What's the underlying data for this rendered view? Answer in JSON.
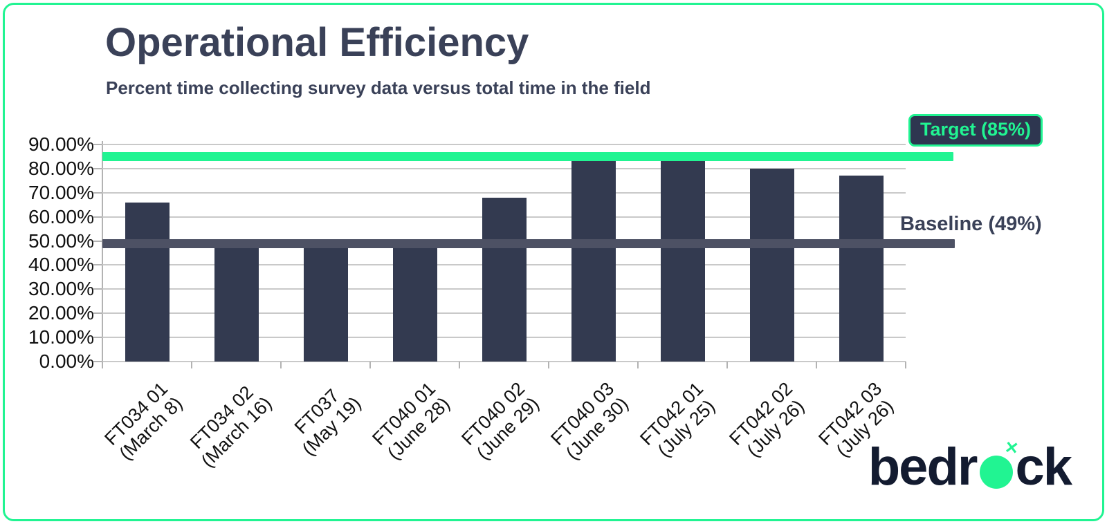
{
  "header": {
    "title": "Operational Efficiency",
    "subtitle": "Percent time collecting survey data versus total time in the field"
  },
  "chart_data": {
    "type": "bar",
    "title": "Operational Efficiency",
    "subtitle": "Percent time collecting survey data versus total time in the field",
    "categories": [
      {
        "id": "FT034 01",
        "date": "(March 8)"
      },
      {
        "id": "FT034 02",
        "date": "(March 16)"
      },
      {
        "id": "FT037",
        "date": "(May 19)"
      },
      {
        "id": "FT040 01",
        "date": "(June 28)"
      },
      {
        "id": "FT040 02",
        "date": "(June 29)"
      },
      {
        "id": "FT040 03",
        "date": "(June 30)"
      },
      {
        "id": "FT042 01",
        "date": "(July 25)"
      },
      {
        "id": "FT042 02",
        "date": "(July 26)"
      },
      {
        "id": "FT042 03",
        "date": "(July 26)"
      }
    ],
    "values": [
      66,
      48,
      48,
      48,
      68,
      83,
      84,
      80,
      77
    ],
    "unit": "percent",
    "ylim": [
      0,
      90
    ],
    "y_tick_labels": [
      "90.00%",
      "80.00%",
      "70.00%",
      "60.00%",
      "50.00%",
      "40.00%",
      "30.00%",
      "20.00%",
      "10.00%",
      "0.00%"
    ],
    "grid": true,
    "legend_position": "none",
    "reference_lines": [
      {
        "name": "target",
        "label": "Target (85%)",
        "value": 85,
        "color": "#21f492"
      },
      {
        "name": "baseline",
        "label": "Baseline (49%)",
        "value": 49,
        "color": "#4d5164"
      }
    ]
  },
  "logo": {
    "text_before_o": "bedr",
    "text_after_o": "ck",
    "x_glyph": "✕"
  },
  "colors": {
    "accent_green": "#21f492",
    "bar_navy": "#333a50",
    "baseline_band": "#4d5164",
    "title_navy": "#3a4158",
    "logo_navy": "#131b30",
    "grid_gray": "#c9c9c9"
  }
}
